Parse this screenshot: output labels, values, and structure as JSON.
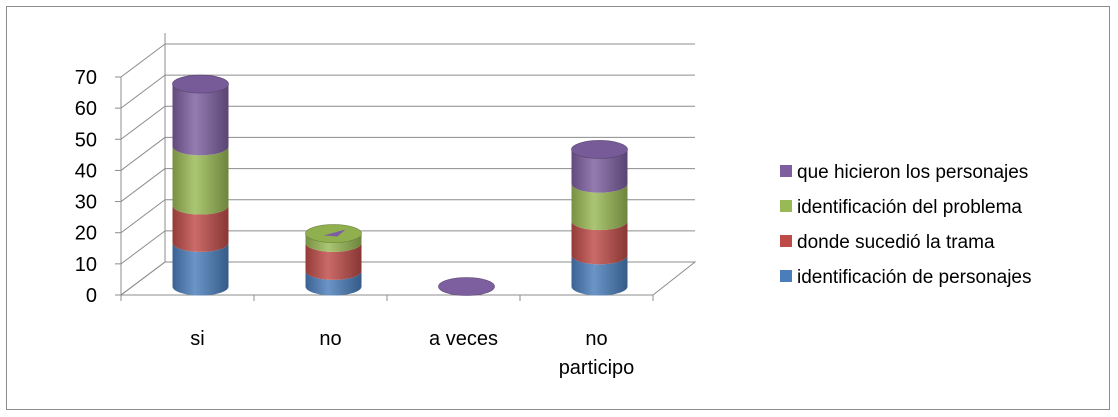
{
  "chart_data": {
    "type": "bar",
    "stacked": true,
    "three_d": true,
    "bar_shape": "cylinder",
    "title": "",
    "xlabel": "",
    "ylabel": "",
    "ylim": [
      0,
      70
    ],
    "yticks": [
      "0",
      "10",
      "20",
      "30",
      "40",
      "50",
      "60",
      "70"
    ],
    "grid": true,
    "legend_position": "right",
    "categories": [
      {
        "lines": [
          "si"
        ]
      },
      {
        "lines": [
          "no"
        ]
      },
      {
        "lines": [
          "a veces"
        ]
      },
      {
        "lines": [
          "no",
          "participo"
        ]
      }
    ],
    "series": [
      {
        "name": "identificación de personajes",
        "color": "#4a7ebb",
        "values": [
          14,
          5,
          0,
          10
        ]
      },
      {
        "name": "donde sucedió la trama",
        "color": "#be4b48",
        "values": [
          12,
          9,
          0,
          11
        ]
      },
      {
        "name": "identificación del problema",
        "color": "#98b954",
        "values": [
          19,
          3,
          0,
          12
        ]
      },
      {
        "name": "que hicieron los personajes",
        "color": "#7d5fa0",
        "values": [
          20,
          0,
          0,
          11
        ]
      }
    ]
  }
}
